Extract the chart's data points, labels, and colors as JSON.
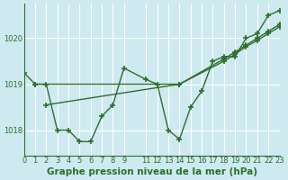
{
  "title": "Graphe pression niveau de la mer (hPa)",
  "background_color": "#ceeaf0",
  "grid_color": "#ffffff",
  "line_color": "#2d6e2d",
  "series": {
    "zigzag": {
      "x": [
        0,
        1,
        2,
        3,
        4,
        5,
        6,
        7,
        8,
        9,
        11,
        12,
        13,
        14,
        15,
        16,
        17,
        18,
        19,
        20,
        21,
        22,
        23
      ],
      "y": [
        1019.25,
        1019.0,
        1019.0,
        1018.0,
        1018.0,
        1017.75,
        1017.75,
        1018.3,
        1018.55,
        1019.35,
        1019.1,
        1019.0,
        1018.0,
        1017.8,
        1018.5,
        1018.85,
        1019.5,
        1019.6,
        1019.6,
        1020.0,
        1020.1,
        1020.5,
        1020.6
      ]
    },
    "smooth1": {
      "x": [
        2,
        14,
        18,
        19,
        20,
        21,
        22,
        23
      ],
      "y": [
        1018.55,
        1019.0,
        1019.5,
        1019.65,
        1019.82,
        1019.95,
        1020.1,
        1020.25
      ]
    },
    "smooth2": {
      "x": [
        1,
        14,
        18,
        19,
        20,
        21,
        22,
        23
      ],
      "y": [
        1019.0,
        1019.0,
        1019.55,
        1019.7,
        1019.85,
        1020.0,
        1020.15,
        1020.3
      ]
    }
  },
  "xlim": [
    0,
    23
  ],
  "ylim": [
    1017.45,
    1020.75
  ],
  "yticks": [
    1018,
    1019,
    1020
  ],
  "xticks": [
    0,
    1,
    2,
    3,
    4,
    5,
    6,
    7,
    8,
    9,
    11,
    12,
    13,
    14,
    15,
    16,
    17,
    18,
    19,
    20,
    21,
    22,
    23
  ],
  "title_fontsize": 7.5,
  "tick_fontsize": 6.0
}
